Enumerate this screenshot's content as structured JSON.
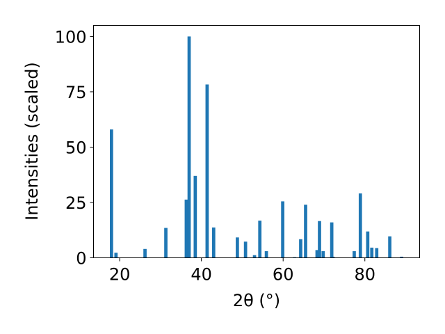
{
  "chart_data": {
    "type": "bar",
    "xlabel": "2θ (°)",
    "ylabel": "Intensities (scaled)",
    "xlim": [
      13.6,
      93.4
    ],
    "ylim": [
      0,
      105
    ],
    "x_ticks": [
      20,
      40,
      60,
      80
    ],
    "y_ticks": [
      0,
      25,
      50,
      75,
      100
    ],
    "bar_color": "#1f77b4",
    "bar_width": 0.8,
    "series": [
      {
        "x": [
          18.0,
          19.1,
          26.2,
          31.3,
          36.3,
          37.0,
          38.5,
          41.4,
          43.0,
          48.8,
          50.8,
          53.0,
          54.3,
          55.9,
          59.9,
          62.8,
          64.3,
          65.5,
          68.3,
          68.9,
          69.8,
          71.9,
          72.2,
          77.4,
          78.9,
          80.7,
          81.7,
          82.9,
          86.1,
          89.0
        ],
        "values": [
          58,
          2.3,
          4,
          13.5,
          26.3,
          100,
          37,
          78.3,
          13.7,
          9.2,
          7.3,
          1.2,
          16.8,
          3,
          25.5,
          0.3,
          8.4,
          24,
          3.5,
          16.6,
          3,
          16,
          0.5,
          3,
          29.1,
          11.9,
          4.6,
          4.4,
          9.7,
          0.5
        ]
      }
    ]
  }
}
